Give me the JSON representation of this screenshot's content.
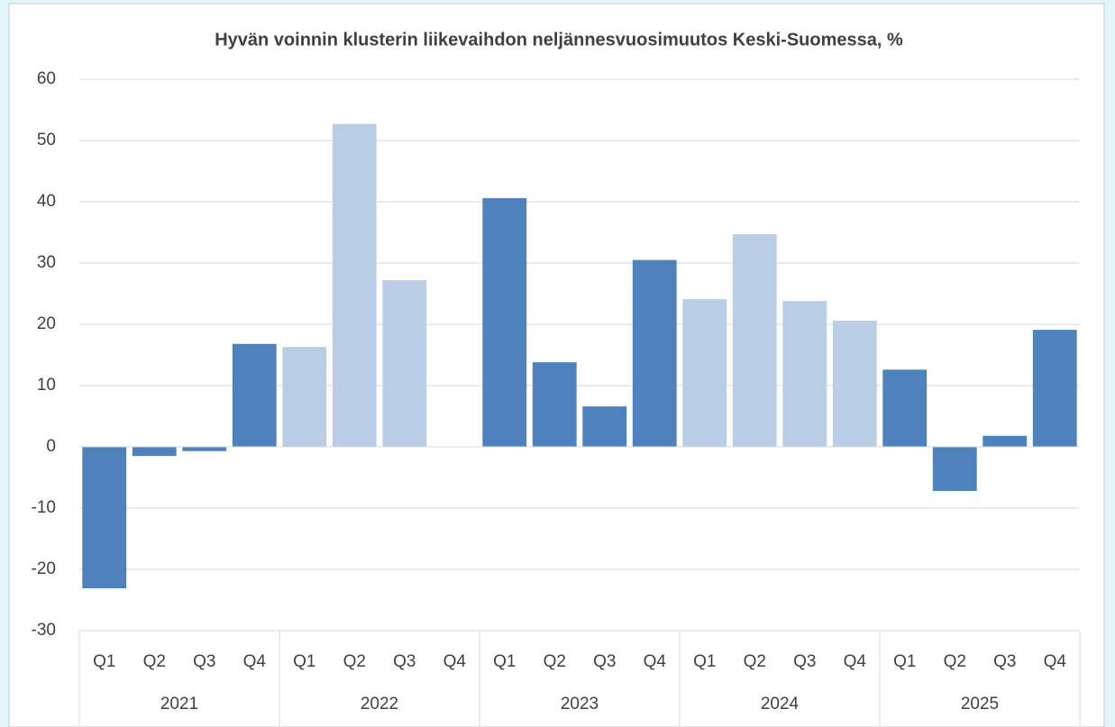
{
  "chart_data": {
    "type": "bar",
    "title": "Hyvän voinnin klusterin liikevaihdon neljännesvuosimuutos Keski-Suomessa, %",
    "ylim": [
      -30,
      60
    ],
    "yticks": [
      -30,
      -20,
      -10,
      0,
      10,
      20,
      30,
      40,
      50,
      60
    ],
    "grid": true,
    "groups": [
      {
        "name": "2021",
        "color": "#4f81bd",
        "categories": [
          "Q1",
          "Q2",
          "Q3",
          "Q4"
        ],
        "values": [
          -23.1,
          -1.5,
          -0.7,
          16.8
        ]
      },
      {
        "name": "2022",
        "color": "#b9cde5",
        "categories": [
          "Q1",
          "Q2",
          "Q3",
          "Q4"
        ],
        "values": [
          16.3,
          52.7,
          27.2,
          null
        ]
      },
      {
        "name": "2023",
        "color": "#4f81bd",
        "categories": [
          "Q1",
          "Q2",
          "Q3",
          "Q4"
        ],
        "values": [
          40.6,
          13.8,
          6.6,
          30.5
        ]
      },
      {
        "name": "2024",
        "color": "#b9cde5",
        "categories": [
          "Q1",
          "Q2",
          "Q3",
          "Q4"
        ],
        "values": [
          24.1,
          34.7,
          23.8,
          20.6
        ]
      },
      {
        "name": "2025",
        "color": "#4f81bd",
        "categories": [
          "Q1",
          "Q2",
          "Q3",
          "Q4"
        ],
        "values": [
          12.6,
          -7.2,
          1.8,
          19.1
        ]
      }
    ]
  }
}
